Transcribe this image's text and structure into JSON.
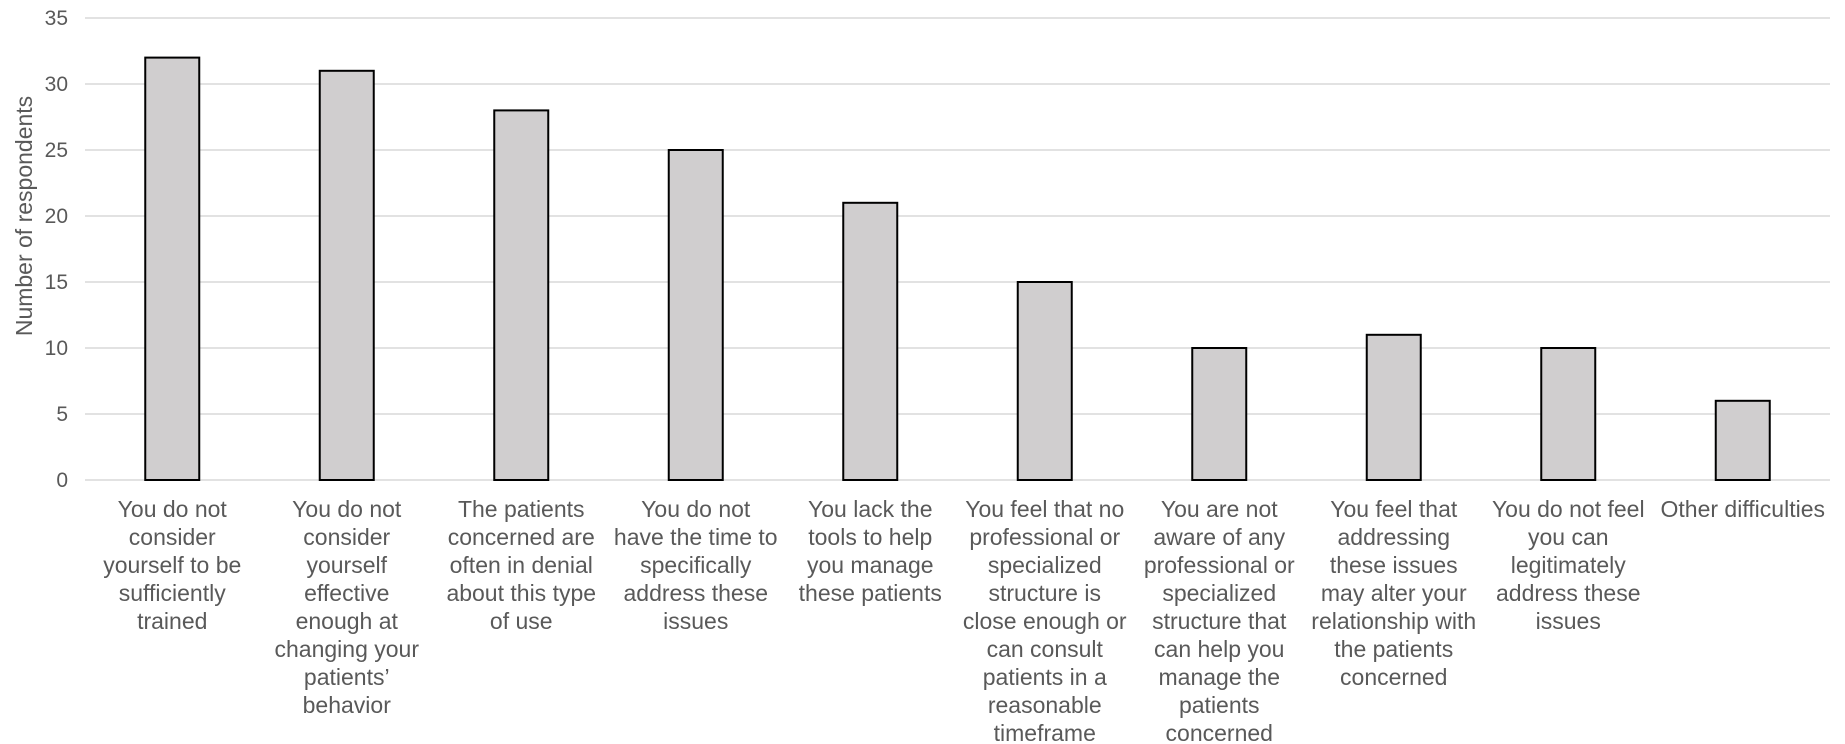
{
  "chart_data": {
    "type": "bar",
    "title": "",
    "xlabel": "",
    "ylabel": "Number of respondents",
    "ylim": [
      0,
      35
    ],
    "yticks": [
      0,
      5,
      10,
      15,
      20,
      25,
      30,
      35
    ],
    "grid": true,
    "legend": "none",
    "colors": {
      "bar_fill": "#d0cecf",
      "bar_stroke": "#000000",
      "grid": "#d9d9d9",
      "axis": "#d9d9d9",
      "text": "#595959"
    },
    "categories": [
      [
        "You do not",
        "consider",
        "yourself to be",
        "sufficiently",
        "trained"
      ],
      [
        "You do not",
        "consider",
        "yourself",
        "effective",
        "enough at",
        "changing your",
        "patients’",
        "behavior"
      ],
      [
        "The patients",
        "concerned are",
        "often in denial",
        "about this type",
        "of use"
      ],
      [
        "You do not",
        "have the time to",
        "specifically",
        "address these",
        "issues"
      ],
      [
        "You lack the",
        "tools to help",
        "you manage",
        "these patients"
      ],
      [
        "You feel that no",
        "professional or",
        "specialized",
        "structure is",
        "close enough or",
        "can consult",
        "patients in a",
        "reasonable",
        "timeframe"
      ],
      [
        "You are not",
        "aware of any",
        "professional or",
        "specialized",
        "structure that",
        "can help you",
        "manage the",
        "patients",
        "concerned"
      ],
      [
        "You feel that",
        "addressing",
        "these issues",
        "may alter your",
        "relationship with",
        "the patients",
        "concerned"
      ],
      [
        "You do not feel",
        "you can",
        "legitimately",
        "address these",
        "issues"
      ],
      [
        "Other difficulties"
      ]
    ],
    "values": [
      32,
      31,
      28,
      25,
      21,
      15,
      10,
      11,
      10,
      6
    ]
  }
}
